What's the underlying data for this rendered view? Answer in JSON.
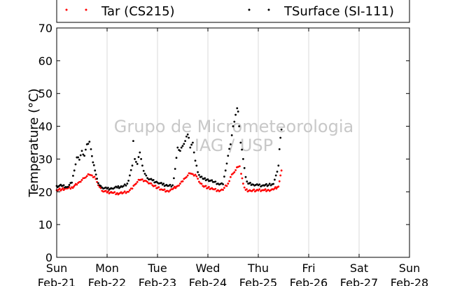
{
  "chart_data": {
    "type": "scatter",
    "ylabel": "Temperature (°C)",
    "ylim": [
      0,
      70
    ],
    "yticks": [
      0,
      10,
      20,
      30,
      40,
      50,
      60,
      70
    ],
    "xlim_days": [
      0,
      7
    ],
    "xticks": [
      {
        "day": "Sun",
        "date": "Feb-21"
      },
      {
        "day": "Mon",
        "date": "Feb-22"
      },
      {
        "day": "Tue",
        "date": "Feb-23"
      },
      {
        "day": "Wed",
        "date": "Feb-24"
      },
      {
        "day": "Thu",
        "date": "Feb-25"
      },
      {
        "day": "Fri",
        "date": "Feb-26"
      },
      {
        "day": "Sat",
        "date": "Feb-27"
      },
      {
        "day": "Sun",
        "date": "Feb-28"
      }
    ],
    "grid": "vertical",
    "legend_position": "top",
    "series": [
      {
        "name": "Tar (CS215)",
        "color": "#ff0000",
        "points": [
          [
            0.0,
            20.5
          ],
          [
            0.1,
            20.7
          ],
          [
            0.2,
            21.0
          ],
          [
            0.3,
            21.4
          ],
          [
            0.4,
            22.2
          ],
          [
            0.45,
            23.0
          ],
          [
            0.5,
            23.6
          ],
          [
            0.55,
            24.2
          ],
          [
            0.6,
            24.8
          ],
          [
            0.65,
            25.2
          ],
          [
            0.7,
            25.0
          ],
          [
            0.75,
            24.6
          ],
          [
            0.8,
            23.0
          ],
          [
            0.85,
            21.5
          ],
          [
            0.9,
            20.3
          ],
          [
            1.0,
            19.8
          ],
          [
            1.1,
            19.7
          ],
          [
            1.2,
            19.6
          ],
          [
            1.3,
            19.5
          ],
          [
            1.4,
            20.0
          ],
          [
            1.5,
            21.0
          ],
          [
            1.55,
            22.2
          ],
          [
            1.6,
            23.0
          ],
          [
            1.65,
            23.6
          ],
          [
            1.7,
            23.8
          ],
          [
            1.75,
            23.4
          ],
          [
            1.8,
            23.0
          ],
          [
            1.85,
            22.6
          ],
          [
            1.9,
            22.0
          ],
          [
            2.0,
            21.2
          ],
          [
            2.1,
            20.6
          ],
          [
            2.2,
            20.3
          ],
          [
            2.3,
            20.8
          ],
          [
            2.4,
            21.8
          ],
          [
            2.5,
            23.2
          ],
          [
            2.55,
            24.2
          ],
          [
            2.6,
            25.0
          ],
          [
            2.65,
            25.6
          ],
          [
            2.7,
            25.4
          ],
          [
            2.75,
            25.2
          ],
          [
            2.8,
            24.0
          ],
          [
            2.85,
            22.6
          ],
          [
            2.9,
            21.8
          ],
          [
            3.0,
            21.2
          ],
          [
            3.1,
            20.8
          ],
          [
            3.2,
            20.5
          ],
          [
            3.3,
            20.6
          ],
          [
            3.4,
            22.5
          ],
          [
            3.45,
            24.5
          ],
          [
            3.5,
            25.6
          ],
          [
            3.55,
            26.6
          ],
          [
            3.6,
            27.6
          ],
          [
            3.63,
            27.8
          ],
          [
            3.66,
            25.5
          ],
          [
            3.7,
            22.5
          ],
          [
            3.75,
            20.6
          ],
          [
            3.85,
            20.3
          ],
          [
            4.0,
            20.4
          ],
          [
            4.1,
            20.5
          ],
          [
            4.2,
            20.6
          ],
          [
            4.3,
            20.7
          ],
          [
            4.4,
            21.6
          ],
          [
            4.42,
            23.2
          ],
          [
            4.44,
            25.0
          ],
          [
            4.46,
            26.5
          ]
        ]
      },
      {
        "name": "TSurface (SI-111)",
        "color": "#000000",
        "points": [
          [
            0.0,
            21.8
          ],
          [
            0.1,
            21.8
          ],
          [
            0.2,
            21.4
          ],
          [
            0.3,
            22.8
          ],
          [
            0.35,
            26.5
          ],
          [
            0.4,
            30.5
          ],
          [
            0.45,
            29.8
          ],
          [
            0.5,
            32.5
          ],
          [
            0.55,
            31.0
          ],
          [
            0.6,
            34.5
          ],
          [
            0.65,
            35.3
          ],
          [
            0.68,
            33.0
          ],
          [
            0.72,
            29.0
          ],
          [
            0.76,
            26.5
          ],
          [
            0.8,
            24.0
          ],
          [
            0.85,
            22.0
          ],
          [
            0.9,
            21.3
          ],
          [
            1.0,
            21.0
          ],
          [
            1.1,
            21.0
          ],
          [
            1.2,
            21.3
          ],
          [
            1.3,
            21.5
          ],
          [
            1.4,
            22.5
          ],
          [
            1.45,
            25.0
          ],
          [
            1.5,
            28.0
          ],
          [
            1.52,
            35.5
          ],
          [
            1.55,
            30.0
          ],
          [
            1.6,
            28.5
          ],
          [
            1.65,
            32.0
          ],
          [
            1.7,
            28.0
          ],
          [
            1.75,
            25.5
          ],
          [
            1.8,
            24.2
          ],
          [
            1.9,
            23.5
          ],
          [
            2.0,
            22.8
          ],
          [
            2.1,
            22.2
          ],
          [
            2.2,
            21.8
          ],
          [
            2.3,
            22.0
          ],
          [
            2.35,
            27.0
          ],
          [
            2.4,
            33.5
          ],
          [
            2.45,
            32.5
          ],
          [
            2.5,
            34.0
          ],
          [
            2.55,
            35.5
          ],
          [
            2.6,
            37.5
          ],
          [
            2.62,
            36.5
          ],
          [
            2.65,
            33.5
          ],
          [
            2.7,
            35.0
          ],
          [
            2.75,
            29.5
          ],
          [
            2.8,
            26.0
          ],
          [
            2.85,
            24.5
          ],
          [
            2.9,
            24.0
          ],
          [
            3.0,
            23.8
          ],
          [
            3.1,
            23.0
          ],
          [
            3.2,
            22.5
          ],
          [
            3.3,
            22.3
          ],
          [
            3.35,
            26.5
          ],
          [
            3.4,
            31.0
          ],
          [
            3.45,
            34.5
          ],
          [
            3.5,
            40.0
          ],
          [
            3.55,
            43.5
          ],
          [
            3.58,
            45.5
          ],
          [
            3.6,
            44.5
          ],
          [
            3.62,
            40.0
          ],
          [
            3.65,
            35.0
          ],
          [
            3.7,
            30.0
          ],
          [
            3.75,
            24.5
          ],
          [
            3.8,
            22.5
          ],
          [
            3.9,
            22.2
          ],
          [
            4.0,
            22.0
          ],
          [
            4.1,
            22.0
          ],
          [
            4.2,
            22.0
          ],
          [
            4.3,
            22.4
          ],
          [
            4.35,
            25.0
          ],
          [
            4.4,
            28.0
          ],
          [
            4.42,
            33.0
          ],
          [
            4.44,
            36.5
          ],
          [
            4.46,
            39.0
          ]
        ]
      }
    ],
    "watermark_lines": [
      "Grupo de Micrometeorologia",
      "IAG / USP"
    ]
  }
}
